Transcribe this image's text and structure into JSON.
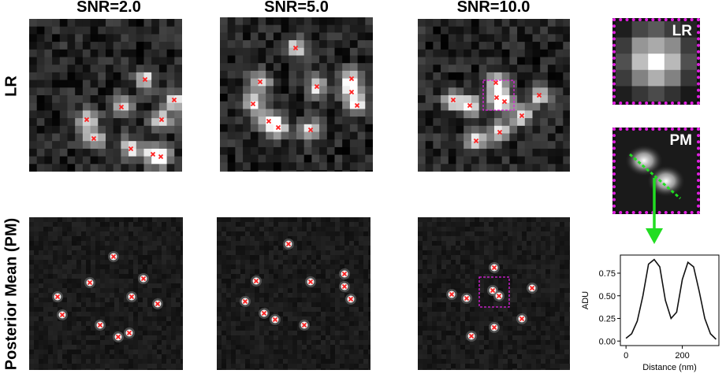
{
  "columns": [
    {
      "title": "SNR=2.0"
    },
    {
      "title": "SNR=5.0"
    },
    {
      "title": "SNR=10.0"
    }
  ],
  "rows": [
    {
      "label": "LR"
    },
    {
      "label": "Posterior Mean (PM)"
    }
  ],
  "insets": {
    "lr_label": "LR",
    "pm_label": "PM",
    "box_color": "#e020e0",
    "line_color": "#22dd22"
  },
  "marker_color": "#ff2020",
  "chart_data": {
    "type": "line",
    "xlabel": "Distance (nm)",
    "ylabel": "ADU",
    "xticks": [
      0,
      200
    ],
    "yticks": [
      0.0,
      0.25,
      0.5,
      0.75
    ],
    "xlim": [
      -20,
      330
    ],
    "ylim": [
      -0.05,
      0.95
    ],
    "series": [
      {
        "x": [
          0,
          20,
          40,
          60,
          80,
          100,
          120,
          140,
          160,
          180,
          200,
          220,
          240,
          260,
          280,
          300,
          320
        ],
        "values": [
          0.03,
          0.08,
          0.22,
          0.5,
          0.85,
          0.9,
          0.82,
          0.45,
          0.25,
          0.32,
          0.68,
          0.87,
          0.82,
          0.55,
          0.25,
          0.08,
          0.02
        ]
      }
    ]
  }
}
